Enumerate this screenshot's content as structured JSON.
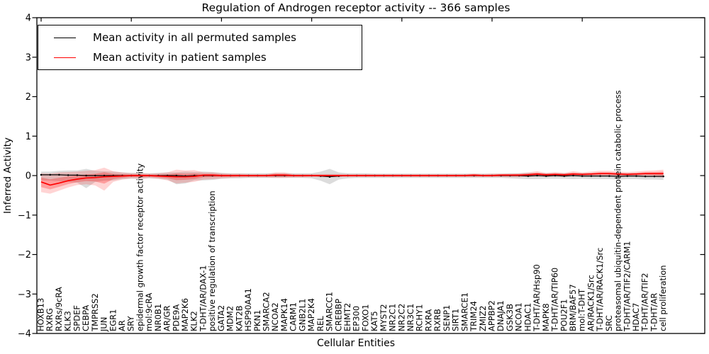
{
  "title": "Regulation of Androgen receptor activity -- 366 samples",
  "axes": {
    "x_label": "Cellular Entities",
    "y_label": "Inferred Activity",
    "y_ticks": [
      "4",
      "3",
      "2",
      "1",
      "0",
      "−1",
      "−2",
      "−3",
      "−4"
    ]
  },
  "legend": [
    {
      "label": "Mean activity in all permuted samples",
      "color": "#000000"
    },
    {
      "label": "Mean activity in patient samples",
      "color": "#ff0000"
    }
  ],
  "colors": {
    "permuted_line": "#000000",
    "patient_line": "#ff0000",
    "permuted_band": "#808080",
    "patient_band": "#ff0000",
    "background": "#ffffff"
  },
  "chart_data": {
    "type": "line",
    "title": "Regulation of Androgen receptor activity -- 366 samples",
    "xlabel": "Cellular Entities",
    "ylabel": "Inferred Activity",
    "ylim": [
      -4,
      4
    ],
    "grid": false,
    "legend_position": "upper left",
    "categories": [
      "HOXB13",
      "RXRG",
      "RXRs/9cRA",
      "KLK3",
      "SPDEF",
      "CEBPA",
      "TMPRSS2",
      "JUN",
      "EGR1",
      "AR",
      "SRY",
      "epidermal growth factor receptor activity",
      "mol:9cRA",
      "NR0B1",
      "AR/GR",
      "PDE9A",
      "MAP2K6",
      "KLK2",
      "T-DHT/AR/DAX-1",
      "positive regulation of transcription",
      "GATA2",
      "MDM2",
      "KAT2B",
      "HSP90AA1",
      "PKN1",
      "SMARCA2",
      "NCOA2",
      "MAPK14",
      "CARM1",
      "GNB2L1",
      "MAP2K4",
      "REL",
      "SMARCC1",
      "CREBBP",
      "EHMT2",
      "EP300",
      "FOXO1",
      "KAT5",
      "MYST2",
      "NR2C1",
      "NR2C2",
      "NR3C1",
      "RCHY1",
      "RXRA",
      "RXRB",
      "SENP1",
      "SIRT1",
      "SMARCE1",
      "TRIM24",
      "ZMIZ2",
      "APPBP2",
      "DNAJA1",
      "GSK3B",
      "NCOA1",
      "HDAC1",
      "T-DHT/AR/Hsp90",
      "MAPK8",
      "T-DHT/AR/TIP60",
      "POU2F1",
      "BRM/BAF57",
      "mol:T-DHT",
      "AR/RACK1/Src",
      "T-DHT/AR/RACK1/Src",
      "SRC",
      "proteasomal ubiquitin-dependent protein catabolic process",
      "T-DHT/AR/TIF2/CARM1",
      "HDAC7",
      "T-DHT/AR/TIF2",
      "T-DHT/AR",
      "cell proliferation"
    ],
    "series": [
      {
        "name": "Mean activity in all permuted samples",
        "color": "#000000",
        "values": [
          0.02,
          0.02,
          0.02,
          0.01,
          0.01,
          0.0,
          0.0,
          0.0,
          0.0,
          0.0,
          0.0,
          0.0,
          0.0,
          0.0,
          0.0,
          0.0,
          -0.01,
          0.0,
          0.0,
          0.0,
          0.0,
          0.0,
          0.0,
          0.0,
          0.0,
          0.0,
          0.0,
          0.0,
          0.0,
          0.0,
          0.0,
          -0.01,
          -0.03,
          -0.01,
          0.0,
          0.0,
          0.0,
          0.0,
          0.0,
          0.0,
          0.0,
          0.0,
          0.0,
          0.0,
          0.0,
          0.0,
          0.0,
          0.0,
          0.0,
          0.0,
          0.0,
          0.0,
          0.0,
          0.0,
          -0.01,
          0.0,
          -0.01,
          0.0,
          -0.01,
          0.0,
          -0.01,
          -0.01,
          -0.01,
          -0.01,
          -0.02,
          -0.01,
          -0.01,
          -0.02,
          -0.02,
          -0.02
        ]
      },
      {
        "name": "Mean activity in patient samples",
        "color": "#ff0000",
        "values": [
          -0.16,
          -0.24,
          -0.19,
          -0.13,
          -0.09,
          -0.06,
          -0.05,
          -0.03,
          -0.02,
          -0.01,
          0.0,
          0.0,
          0.0,
          -0.01,
          -0.02,
          -0.03,
          -0.03,
          -0.02,
          0.01,
          0.01,
          0.0,
          0.0,
          0.0,
          0.0,
          0.0,
          0.0,
          0.01,
          0.01,
          0.0,
          0.0,
          0.0,
          0.0,
          0.0,
          0.0,
          0.0,
          0.0,
          0.0,
          0.0,
          0.0,
          0.0,
          0.0,
          0.0,
          0.0,
          0.0,
          0.0,
          0.0,
          0.0,
          0.0,
          0.01,
          0.0,
          0.0,
          0.01,
          0.01,
          0.01,
          0.02,
          0.04,
          0.02,
          0.03,
          0.02,
          0.04,
          0.03,
          0.04,
          0.05,
          0.05,
          0.04,
          0.03,
          0.04,
          0.05,
          0.05,
          0.05
        ]
      }
    ],
    "bands": [
      {
        "name": "permuted-range",
        "color": "#808080",
        "upper": [
          0.1,
          0.1,
          0.12,
          0.13,
          0.13,
          0.17,
          0.12,
          0.11,
          0.1,
          0.08,
          0.07,
          0.07,
          0.06,
          0.07,
          0.08,
          0.08,
          0.1,
          0.09,
          0.1,
          0.09,
          0.07,
          0.06,
          0.06,
          0.06,
          0.06,
          0.06,
          0.06,
          0.06,
          0.06,
          0.06,
          0.06,
          0.1,
          0.17,
          0.08,
          0.06,
          0.06,
          0.06,
          0.05,
          0.05,
          0.05,
          0.05,
          0.05,
          0.05,
          0.05,
          0.05,
          0.05,
          0.05,
          0.05,
          0.05,
          0.05,
          0.05,
          0.05,
          0.06,
          0.06,
          0.07,
          0.06,
          0.06,
          0.06,
          0.06,
          0.06,
          0.06,
          0.06,
          0.06,
          0.06,
          0.06,
          0.06,
          0.06,
          0.06,
          0.06,
          0.07
        ],
        "lower": [
          -0.12,
          -0.13,
          -0.14,
          -0.16,
          -0.18,
          -0.32,
          -0.16,
          -0.13,
          -0.12,
          -0.09,
          -0.08,
          -0.08,
          -0.07,
          -0.08,
          -0.1,
          -0.22,
          -0.2,
          -0.12,
          -0.12,
          -0.11,
          -0.08,
          -0.07,
          -0.07,
          -0.06,
          -0.06,
          -0.06,
          -0.06,
          -0.06,
          -0.06,
          -0.06,
          -0.07,
          -0.13,
          -0.22,
          -0.1,
          -0.07,
          -0.06,
          -0.06,
          -0.06,
          -0.06,
          -0.06,
          -0.06,
          -0.06,
          -0.06,
          -0.06,
          -0.06,
          -0.06,
          -0.06,
          -0.06,
          -0.06,
          -0.06,
          -0.06,
          -0.06,
          -0.07,
          -0.08,
          -0.09,
          -0.09,
          -0.08,
          -0.08,
          -0.08,
          -0.09,
          -0.08,
          -0.09,
          -0.09,
          -0.09,
          -0.1,
          -0.09,
          -0.09,
          -0.1,
          -0.1,
          -0.11
        ]
      },
      {
        "name": "patient-range",
        "color": "#ff0000",
        "upper": [
          0.06,
          0.05,
          0.08,
          0.09,
          0.1,
          0.12,
          0.14,
          0.2,
          0.11,
          0.08,
          0.06,
          0.06,
          0.05,
          0.06,
          0.08,
          0.15,
          0.13,
          0.14,
          0.08,
          0.08,
          0.06,
          0.05,
          0.05,
          0.04,
          0.04,
          0.04,
          0.08,
          0.08,
          0.04,
          0.04,
          0.04,
          0.04,
          0.04,
          0.04,
          0.04,
          0.04,
          0.04,
          0.04,
          0.04,
          0.04,
          0.04,
          0.04,
          0.04,
          0.04,
          0.04,
          0.04,
          0.04,
          0.04,
          0.05,
          0.04,
          0.05,
          0.05,
          0.05,
          0.06,
          0.08,
          0.11,
          0.07,
          0.09,
          0.07,
          0.11,
          0.08,
          0.1,
          0.12,
          0.12,
          0.1,
          0.09,
          0.1,
          0.12,
          0.13,
          0.15
        ],
        "lower": [
          -0.42,
          -0.46,
          -0.38,
          -0.3,
          -0.24,
          -0.22,
          -0.25,
          -0.38,
          -0.16,
          -0.1,
          -0.07,
          -0.08,
          -0.06,
          -0.08,
          -0.12,
          -0.2,
          -0.18,
          -0.16,
          -0.1,
          -0.09,
          -0.07,
          -0.06,
          -0.05,
          -0.05,
          -0.05,
          -0.05,
          -0.06,
          -0.06,
          -0.05,
          -0.05,
          -0.04,
          -0.04,
          -0.04,
          -0.04,
          -0.04,
          -0.04,
          -0.04,
          -0.04,
          -0.04,
          -0.04,
          -0.04,
          -0.04,
          -0.04,
          -0.04,
          -0.04,
          -0.04,
          -0.04,
          -0.04,
          -0.04,
          -0.04,
          -0.04,
          -0.04,
          -0.04,
          -0.04,
          -0.03,
          -0.02,
          -0.03,
          -0.02,
          -0.03,
          -0.01,
          -0.02,
          -0.01,
          -0.01,
          -0.01,
          -0.02,
          -0.02,
          -0.01,
          -0.01,
          -0.03,
          -0.05
        ]
      }
    ]
  }
}
